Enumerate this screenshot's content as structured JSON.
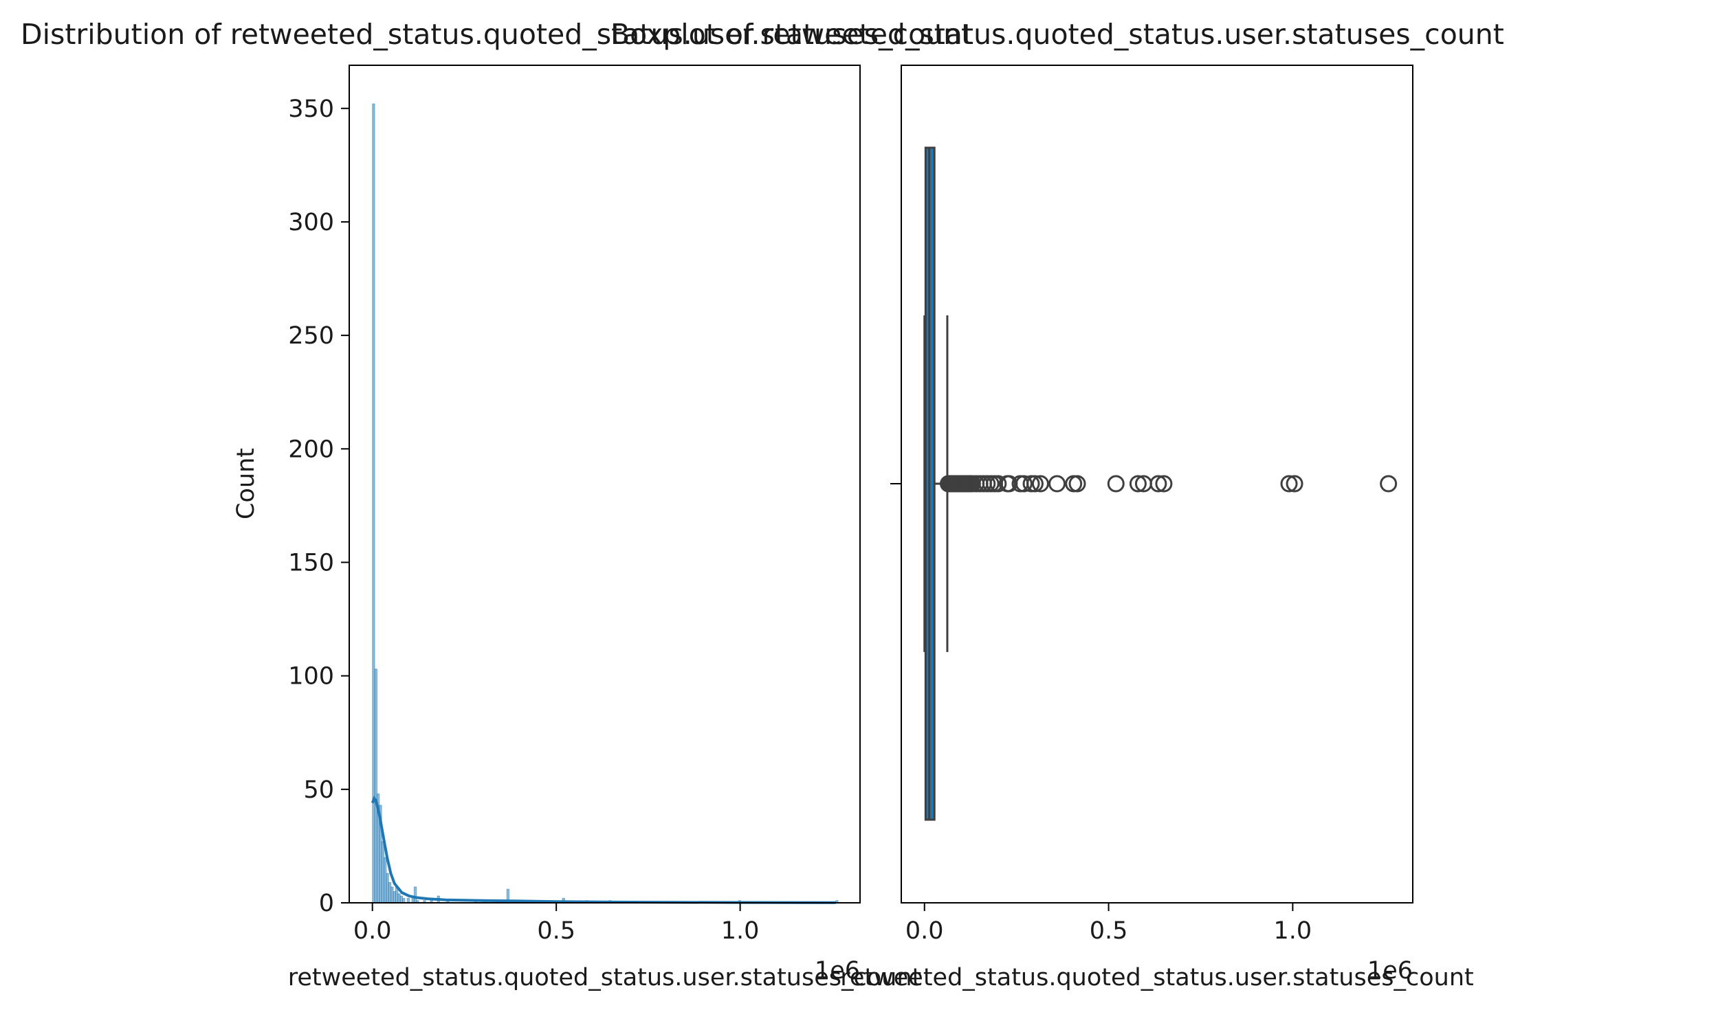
{
  "chart_data": [
    {
      "type": "histogram",
      "title": "Distribution of retweeted_status.quoted_status.user.statuses_count",
      "xlabel": "retweeted_status.quoted_status.user.statuses_count",
      "ylabel": "Count",
      "x_offset_label": "1e6",
      "xlim": [
        -0.063,
        1.326
      ],
      "ylim": [
        0,
        369
      ],
      "x_ticks": [
        0.0,
        0.5,
        1.0
      ],
      "x_tick_labels": [
        "0.0",
        "0.5",
        "1.0"
      ],
      "y_ticks": [
        0,
        50,
        100,
        150,
        200,
        250,
        300,
        350
      ],
      "y_tick_labels": [
        "0",
        "50",
        "100",
        "150",
        "200",
        "250",
        "300",
        "350"
      ],
      "bar_color": "#1f77b4",
      "bins": [
        {
          "x": 0.0,
          "count": 352
        },
        {
          "x": 0.0063,
          "count": 103
        },
        {
          "x": 0.0126,
          "count": 48
        },
        {
          "x": 0.0189,
          "count": 43
        },
        {
          "x": 0.0252,
          "count": 27
        },
        {
          "x": 0.0315,
          "count": 20
        },
        {
          "x": 0.0378,
          "count": 13
        },
        {
          "x": 0.0441,
          "count": 9
        },
        {
          "x": 0.0504,
          "count": 7
        },
        {
          "x": 0.0567,
          "count": 5
        },
        {
          "x": 0.063,
          "count": 7
        },
        {
          "x": 0.0693,
          "count": 4
        },
        {
          "x": 0.0756,
          "count": 3
        },
        {
          "x": 0.0819,
          "count": 2
        },
        {
          "x": 0.0945,
          "count": 2
        },
        {
          "x": 0.1071,
          "count": 3
        },
        {
          "x": 0.1134,
          "count": 7
        },
        {
          "x": 0.1197,
          "count": 1
        },
        {
          "x": 0.1386,
          "count": 1
        },
        {
          "x": 0.1575,
          "count": 1
        },
        {
          "x": 0.1764,
          "count": 3
        },
        {
          "x": 0.2016,
          "count": 1
        },
        {
          "x": 0.2772,
          "count": 1
        },
        {
          "x": 0.3024,
          "count": 1
        },
        {
          "x": 0.3654,
          "count": 6
        },
        {
          "x": 0.4095,
          "count": 1
        },
        {
          "x": 0.5166,
          "count": 2
        },
        {
          "x": 0.5796,
          "count": 1
        },
        {
          "x": 0.6426,
          "count": 1
        },
        {
          "x": 0.9954,
          "count": 1
        },
        {
          "x": 1.26,
          "count": 1
        }
      ],
      "bin_width": 0.0063,
      "kde": {
        "color": "#1f77b4",
        "x": [
          0.0,
          0.005,
          0.01,
          0.02,
          0.03,
          0.04,
          0.05,
          0.06,
          0.08,
          0.1,
          0.12,
          0.15,
          0.2,
          0.3,
          0.4,
          0.5,
          0.7,
          1.0,
          1.26
        ],
        "y": [
          44,
          46,
          45,
          38,
          29,
          20,
          13,
          8.5,
          4.5,
          3,
          2.3,
          1.8,
          1.3,
          1.0,
          0.8,
          0.5,
          0.3,
          0.15,
          0.1
        ]
      }
    },
    {
      "type": "boxplot",
      "title": "Boxplot of retweeted_status.quoted_status.user.statuses_count",
      "xlabel": "retweeted_status.quoted_status.user.statuses_count",
      "x_offset_label": "1e6",
      "xlim": [
        -0.063,
        1.326
      ],
      "x_ticks": [
        0.0,
        0.5,
        1.0
      ],
      "x_tick_labels": [
        "0.0",
        "0.5",
        "1.0"
      ],
      "box_color": "#1f77b4",
      "whisker_low": 0.0,
      "q1": 0.003,
      "median": 0.013,
      "q3": 0.027,
      "whisker_high": 0.062,
      "outliers": [
        0.065,
        0.07,
        0.075,
        0.08,
        0.085,
        0.09,
        0.095,
        0.1,
        0.105,
        0.11,
        0.115,
        0.12,
        0.125,
        0.13,
        0.14,
        0.15,
        0.16,
        0.17,
        0.18,
        0.19,
        0.2,
        0.225,
        0.23,
        0.26,
        0.27,
        0.29,
        0.3,
        0.315,
        0.36,
        0.405,
        0.415,
        0.52,
        0.58,
        0.595,
        0.635,
        0.65,
        0.99,
        1.005,
        1.26
      ]
    }
  ]
}
